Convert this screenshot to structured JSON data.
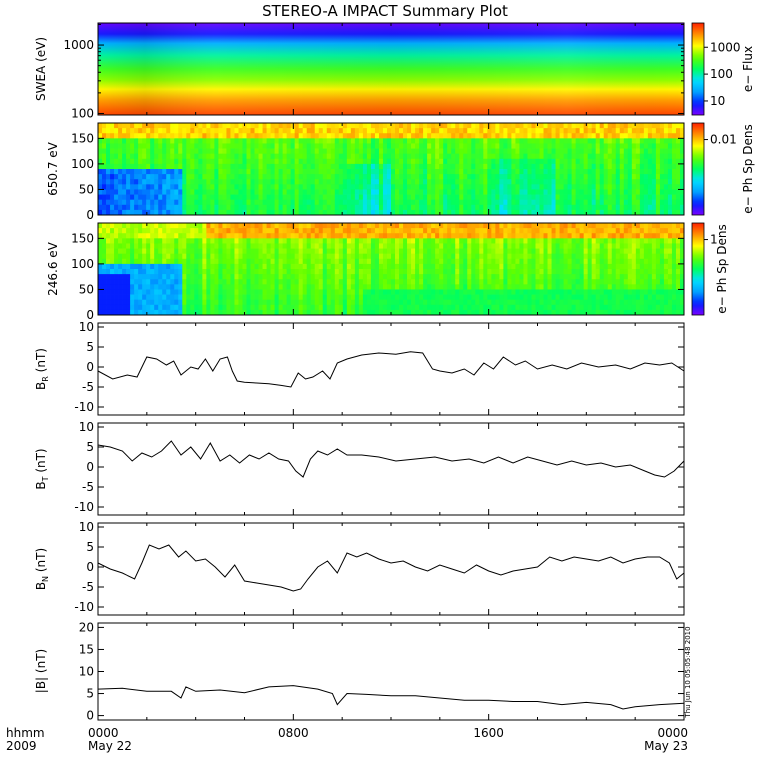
{
  "chart_data": [
    {
      "type": "heatmap",
      "title": "STEREO-A IMPACT Summary Plot",
      "ylabel": "SWEA (eV)",
      "ylog": true,
      "ylim": [
        95,
        2100
      ],
      "yticks": [
        {
          "v": 1000,
          "label": "1000"
        },
        {
          "v": 100,
          "label": "100"
        }
      ],
      "colorbar": {
        "label": "e− Flux",
        "log": true,
        "range": [
          3,
          8000
        ],
        "ticks": [
          {
            "v": 1000,
            "label": "1000"
          },
          {
            "v": 100,
            "label": "100"
          },
          {
            "v": 10,
            "label": "10"
          }
        ]
      },
      "colormap_stops": [
        "#7a00ff",
        "#0020ff",
        "#00a0ff",
        "#00e0ff",
        "#00ff60",
        "#60ff00",
        "#ffff00",
        "#ff9000",
        "#ff2000"
      ]
    },
    {
      "type": "heatmap",
      "ylabel": "650.7 eV",
      "ylim": [
        0,
        180
      ],
      "yticks": [
        {
          "v": 150,
          "label": "150"
        },
        {
          "v": 100,
          "label": "100"
        },
        {
          "v": 50,
          "label": "50"
        },
        {
          "v": 0,
          "label": "0"
        }
      ],
      "colorbar": {
        "label": "e− Ph Sp Dens",
        "ticks": [
          {
            "frac": 0.82,
            "label": "0.01"
          }
        ]
      }
    },
    {
      "type": "heatmap",
      "ylabel": "246.6 eV",
      "ylim": [
        0,
        180
      ],
      "yticks": [
        {
          "v": 150,
          "label": "150"
        },
        {
          "v": 100,
          "label": "100"
        },
        {
          "v": 50,
          "label": "50"
        },
        {
          "v": 0,
          "label": "0"
        }
      ],
      "colorbar": {
        "label": "e− Ph Sp Dens",
        "ticks": [
          {
            "frac": 0.82,
            "label": "1"
          }
        ]
      }
    },
    {
      "type": "line",
      "ylabel": "B",
      "ylabel_sub": "R",
      "ylabel_unit": " (nT)",
      "ylim": [
        -12,
        11
      ],
      "yticks": [
        {
          "v": 10,
          "label": "10"
        },
        {
          "v": 5,
          "label": "5"
        },
        {
          "v": 0,
          "label": "0"
        },
        {
          "v": -5,
          "label": "-5"
        },
        {
          "v": -10,
          "label": "-10"
        }
      ],
      "series": [
        {
          "x": [
            0,
            0.6,
            1.2,
            1.6,
            2.0,
            2.4,
            2.8,
            3.1,
            3.4,
            3.8,
            4.1,
            4.4,
            4.7,
            5.0,
            5.3,
            5.5,
            5.7,
            6.0,
            6.5,
            7.0,
            7.5,
            7.9,
            8.2,
            8.5,
            8.8,
            9.2,
            9.5,
            9.8,
            10.2,
            10.8,
            11.5,
            12.2,
            12.8,
            13.3,
            13.7,
            14.0,
            14.5,
            15.0,
            15.4,
            15.8,
            16.2,
            16.6,
            17.1,
            17.5,
            18.0,
            18.6,
            19.2,
            19.8,
            20.5,
            21.2,
            21.8,
            22.4,
            23.0,
            23.5,
            24.0
          ],
          "y": [
            -1.0,
            -3.0,
            -2.0,
            -2.5,
            2.5,
            2.0,
            0.5,
            1.5,
            -2.0,
            0.0,
            -0.5,
            2.0,
            -1.0,
            2.0,
            2.5,
            -1.0,
            -3.5,
            -3.8,
            -4.0,
            -4.2,
            -4.6,
            -5.0,
            -1.5,
            -3.0,
            -2.5,
            -1.0,
            -3.0,
            1.0,
            2.0,
            3.0,
            3.5,
            3.2,
            3.8,
            3.5,
            -0.5,
            -1.0,
            -1.5,
            -0.5,
            -2.0,
            1.0,
            -0.5,
            2.5,
            0.5,
            1.5,
            -0.5,
            0.5,
            -0.5,
            1.0,
            0.0,
            0.5,
            -0.5,
            1.0,
            0.5,
            1.0,
            -1.0
          ]
        }
      ]
    },
    {
      "type": "line",
      "ylabel": "B",
      "ylabel_sub": "T",
      "ylabel_unit": " (nT)",
      "ylim": [
        -12,
        11
      ],
      "yticks": [
        {
          "v": 10,
          "label": "10"
        },
        {
          "v": 5,
          "label": "5"
        },
        {
          "v": 0,
          "label": "0"
        },
        {
          "v": -5,
          "label": "-5"
        },
        {
          "v": -10,
          "label": "-10"
        }
      ],
      "series": [
        {
          "x": [
            0,
            0.5,
            1.0,
            1.4,
            1.8,
            2.2,
            2.6,
            3.0,
            3.4,
            3.8,
            4.2,
            4.6,
            5.0,
            5.4,
            5.8,
            6.2,
            6.6,
            7.0,
            7.4,
            7.8,
            8.1,
            8.4,
            8.7,
            9.0,
            9.4,
            9.8,
            10.2,
            10.8,
            11.5,
            12.2,
            13.0,
            13.8,
            14.5,
            15.2,
            15.8,
            16.4,
            17.0,
            17.6,
            18.2,
            18.8,
            19.4,
            20.0,
            20.6,
            21.2,
            21.8,
            22.4,
            22.8,
            23.2,
            23.6,
            24.0
          ],
          "y": [
            5.5,
            5.0,
            4.0,
            1.5,
            3.5,
            2.5,
            4.0,
            6.5,
            3.0,
            5.0,
            2.0,
            6.0,
            1.5,
            3.0,
            1.0,
            3.0,
            2.0,
            3.5,
            2.0,
            1.5,
            -1.0,
            -2.5,
            2.0,
            4.0,
            3.0,
            4.5,
            3.0,
            3.0,
            2.5,
            1.5,
            2.0,
            2.5,
            1.5,
            2.0,
            1.0,
            2.5,
            1.0,
            2.5,
            1.5,
            0.5,
            1.5,
            0.5,
            1.0,
            0.0,
            0.5,
            -1.0,
            -2.0,
            -2.5,
            -1.0,
            1.5
          ]
        }
      ]
    },
    {
      "type": "line",
      "ylabel": "B",
      "ylabel_sub": "N",
      "ylabel_unit": " (nT)",
      "ylim": [
        -12,
        11
      ],
      "yticks": [
        {
          "v": 10,
          "label": "10"
        },
        {
          "v": 5,
          "label": "5"
        },
        {
          "v": 0,
          "label": "0"
        },
        {
          "v": -5,
          "label": "-5"
        },
        {
          "v": -10,
          "label": "-10"
        }
      ],
      "series": [
        {
          "x": [
            0,
            0.5,
            1.0,
            1.5,
            1.8,
            2.1,
            2.5,
            2.9,
            3.3,
            3.6,
            4.0,
            4.4,
            4.8,
            5.2,
            5.6,
            6.0,
            6.5,
            7.0,
            7.5,
            8.0,
            8.3,
            8.6,
            9.0,
            9.4,
            9.8,
            10.2,
            10.6,
            11.0,
            11.5,
            12.0,
            12.5,
            13.0,
            13.5,
            14.0,
            14.5,
            15.0,
            15.5,
            16.0,
            16.5,
            17.0,
            17.5,
            18.0,
            18.5,
            19.0,
            19.5,
            20.0,
            20.5,
            21.0,
            21.5,
            22.0,
            22.5,
            23.0,
            23.4,
            23.7,
            24.0
          ],
          "y": [
            1.0,
            -0.5,
            -1.5,
            -3.0,
            1.0,
            5.5,
            4.5,
            5.5,
            2.5,
            4.0,
            1.5,
            2.0,
            0.0,
            -2.5,
            0.5,
            -3.5,
            -4.0,
            -4.5,
            -5.0,
            -6.0,
            -5.5,
            -3.0,
            0.0,
            1.5,
            -1.5,
            3.5,
            2.5,
            3.5,
            2.0,
            1.0,
            1.5,
            0.0,
            -1.0,
            0.5,
            -0.5,
            -1.5,
            0.5,
            -1.0,
            -2.0,
            -1.0,
            -0.5,
            0.0,
            2.5,
            1.5,
            2.5,
            2.0,
            1.5,
            2.5,
            1.0,
            2.0,
            2.5,
            2.5,
            1.0,
            -3.0,
            -1.5
          ]
        }
      ]
    },
    {
      "type": "line",
      "ylabel": "|B| (nT)",
      "ylim": [
        -1,
        21
      ],
      "yticks": [
        {
          "v": 20,
          "label": "20"
        },
        {
          "v": 15,
          "label": "15"
        },
        {
          "v": 10,
          "label": "10"
        },
        {
          "v": 5,
          "label": "5"
        },
        {
          "v": 0,
          "label": "0"
        }
      ],
      "xticks": [
        {
          "v": 0,
          "label": "0000",
          "sub": "May 22"
        },
        {
          "v": 8,
          "label": "0800",
          "sub": ""
        },
        {
          "v": 16,
          "label": "1600",
          "sub": ""
        },
        {
          "v": 24,
          "label": "0000",
          "sub": "May 23"
        }
      ],
      "xlim": [
        0,
        24
      ],
      "x_axis_left": [
        "hhmm",
        "2009"
      ],
      "series": [
        {
          "x": [
            0,
            1.0,
            2.0,
            3.0,
            3.4,
            3.6,
            4.0,
            5.0,
            6.0,
            7.0,
            8.0,
            9.0,
            9.6,
            9.8,
            10.2,
            11.0,
            12.0,
            13.0,
            14.0,
            15.0,
            16.0,
            17.0,
            18.0,
            19.0,
            20.0,
            21.0,
            21.5,
            22.0,
            23.0,
            24.0
          ],
          "y": [
            6.0,
            6.2,
            5.5,
            5.5,
            4.0,
            6.5,
            5.5,
            5.8,
            5.2,
            6.5,
            6.8,
            6.0,
            5.0,
            2.5,
            5.0,
            4.8,
            4.5,
            4.5,
            4.0,
            3.5,
            3.5,
            3.2,
            3.2,
            2.5,
            3.0,
            2.5,
            1.5,
            2.0,
            2.5,
            2.8
          ]
        }
      ],
      "timestamp": "Thu Jun 10 05:05:48 2010"
    }
  ]
}
